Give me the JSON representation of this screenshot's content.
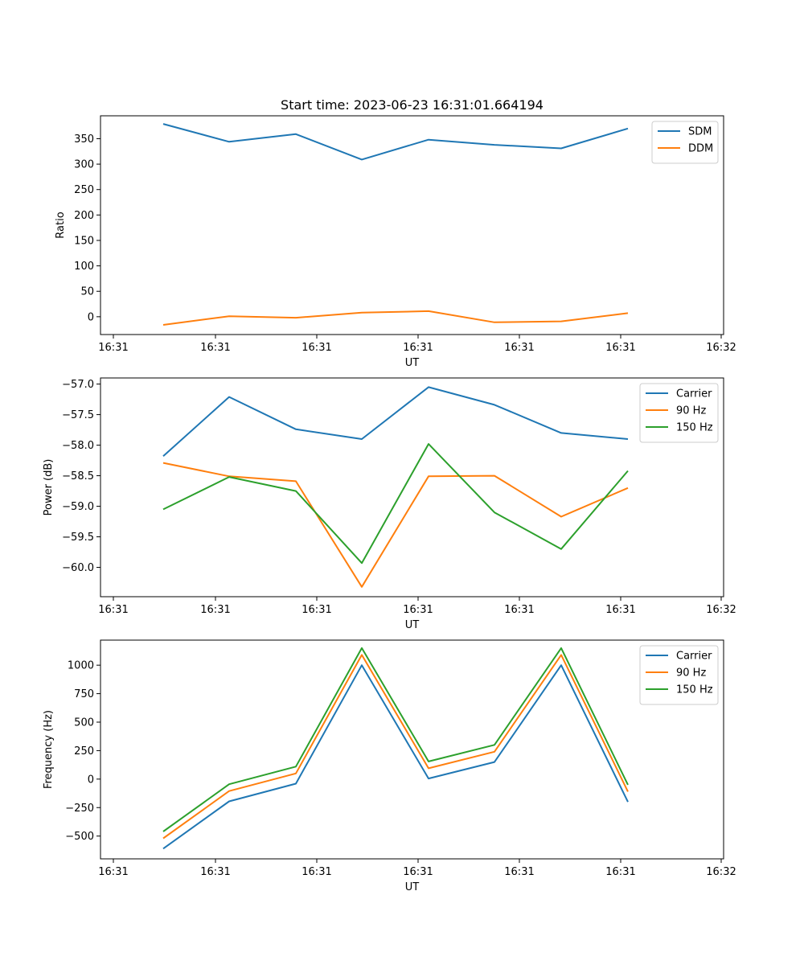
{
  "figure_title": "Start time: 2023-06-23 16:31:01.664194",
  "colors": {
    "blue": "#1f77b4",
    "orange": "#ff7f0e",
    "green": "#2ca02c"
  },
  "chart_data": [
    {
      "type": "line",
      "title": "Start time: 2023-06-23 16:31:01.664194",
      "xlabel": "UT",
      "ylabel": "Ratio",
      "x_tick_labels": [
        "16:31",
        "16:31",
        "16:31",
        "16:31",
        "16:31",
        "16:31",
        "16:31",
        "16:32"
      ],
      "y_ticks": [
        0,
        50,
        100,
        150,
        200,
        250,
        300,
        350
      ],
      "ylim": [
        -35,
        395
      ],
      "legend_position": "top-right",
      "series": [
        {
          "name": "SDM",
          "color": "#1f77b4",
          "values": [
            379,
            344,
            359,
            309,
            348,
            338,
            331,
            370
          ]
        },
        {
          "name": "DDM",
          "color": "#ff7f0e",
          "values": [
            -16,
            1,
            -2,
            8,
            11,
            -11,
            -9,
            7
          ]
        }
      ]
    },
    {
      "type": "line",
      "title": "",
      "xlabel": "UT",
      "ylabel": "Power (dB)",
      "x_tick_labels": [
        "16:31",
        "16:31",
        "16:31",
        "16:31",
        "16:31",
        "16:31",
        "16:31",
        "16:32"
      ],
      "y_ticks": [
        -60.0,
        -59.5,
        -59.0,
        -58.5,
        -58.0,
        -57.5,
        -57.0
      ],
      "y_tick_labels": [
        "−60.0",
        "−59.5",
        "−59.0",
        "−58.5",
        "−58.0",
        "−57.5",
        "−57.0"
      ],
      "ylim": [
        -60.48,
        -56.9
      ],
      "legend_position": "top-right",
      "series": [
        {
          "name": "Carrier",
          "color": "#1f77b4",
          "values": [
            -58.18,
            -57.21,
            -57.74,
            -57.9,
            -57.05,
            -57.34,
            -57.8,
            -57.9
          ]
        },
        {
          "name": "90 Hz",
          "color": "#ff7f0e",
          "values": [
            -58.29,
            -58.51,
            -58.59,
            -60.32,
            -58.51,
            -58.5,
            -59.17,
            -58.7
          ]
        },
        {
          "name": "150 Hz",
          "color": "#2ca02c",
          "values": [
            -59.05,
            -58.52,
            -58.75,
            -59.93,
            -57.98,
            -59.1,
            -59.7,
            -58.42
          ]
        }
      ]
    },
    {
      "type": "line",
      "title": "",
      "xlabel": "UT",
      "ylabel": "Frequency (Hz)",
      "x_tick_labels": [
        "16:31",
        "16:31",
        "16:31",
        "16:31",
        "16:31",
        "16:31",
        "16:31",
        "16:32"
      ],
      "y_ticks": [
        -500,
        -250,
        0,
        250,
        500,
        750,
        1000
      ],
      "y_tick_labels": [
        "−500",
        "−250",
        "0",
        "250",
        "500",
        "750",
        "1000"
      ],
      "ylim": [
        -700,
        1220
      ],
      "legend_position": "top-right",
      "series": [
        {
          "name": "Carrier",
          "color": "#1f77b4",
          "values": [
            -610,
            -195,
            -40,
            1000,
            5,
            150,
            1000,
            -200
          ]
        },
        {
          "name": "90 Hz",
          "color": "#ff7f0e",
          "values": [
            -520,
            -105,
            50,
            1090,
            95,
            240,
            1090,
            -110
          ]
        },
        {
          "name": "150 Hz",
          "color": "#2ca02c",
          "values": [
            -460,
            -45,
            110,
            1150,
            155,
            300,
            1150,
            -50
          ]
        }
      ]
    }
  ]
}
